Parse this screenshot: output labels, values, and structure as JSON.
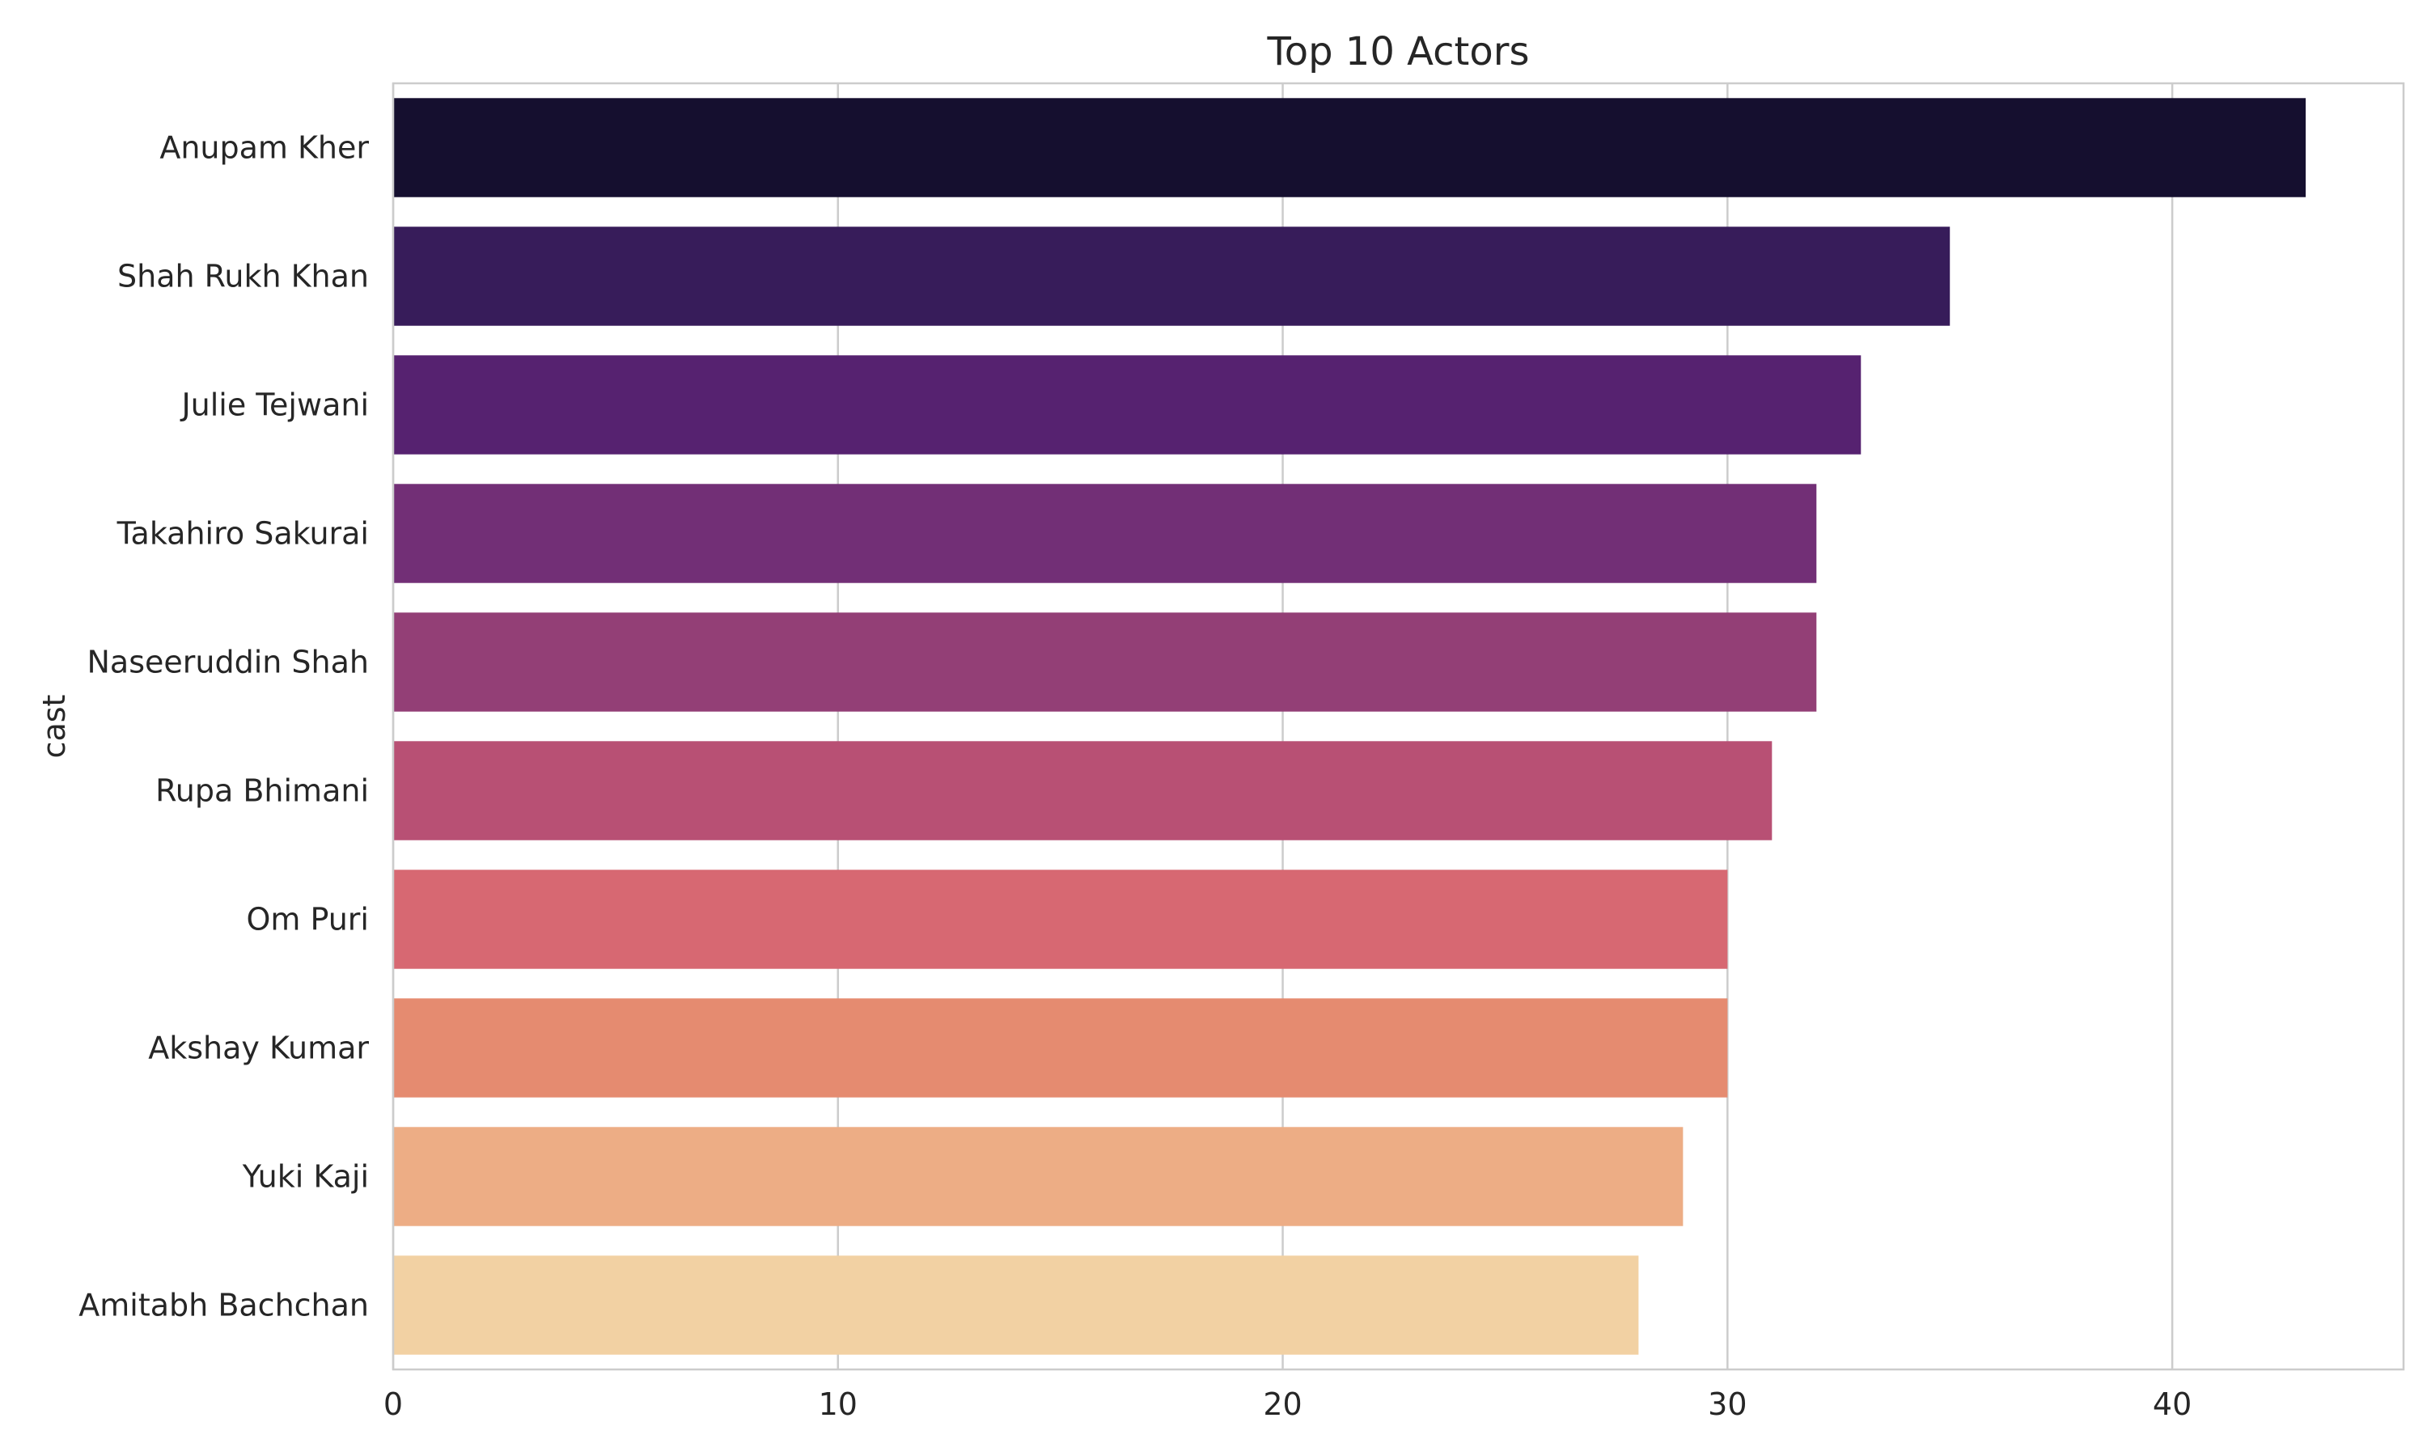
{
  "chart_data": {
    "type": "bar",
    "orientation": "horizontal",
    "title": "Top 10 Actors",
    "xlabel": "",
    "ylabel": "cast",
    "categories": [
      "Anupam Kher",
      "Shah Rukh Khan",
      "Julie Tejwani",
      "Takahiro Sakurai",
      "Naseeruddin Shah",
      "Rupa Bhimani",
      "Om Puri",
      "Akshay Kumar",
      "Yuki Kaji",
      "Amitabh Bachchan"
    ],
    "values": [
      43,
      35,
      33,
      32,
      32,
      31,
      30,
      30,
      29,
      28
    ],
    "colors": [
      "#150f2f",
      "#371c5a",
      "#562270",
      "#722f76",
      "#933f76",
      "#b85074",
      "#d76872",
      "#e58b70",
      "#edad85",
      "#f2d1a3"
    ],
    "xlim": [
      0,
      45.2
    ],
    "xticks": [
      0,
      10,
      20,
      30,
      40
    ],
    "grid": true,
    "legend": "none"
  }
}
